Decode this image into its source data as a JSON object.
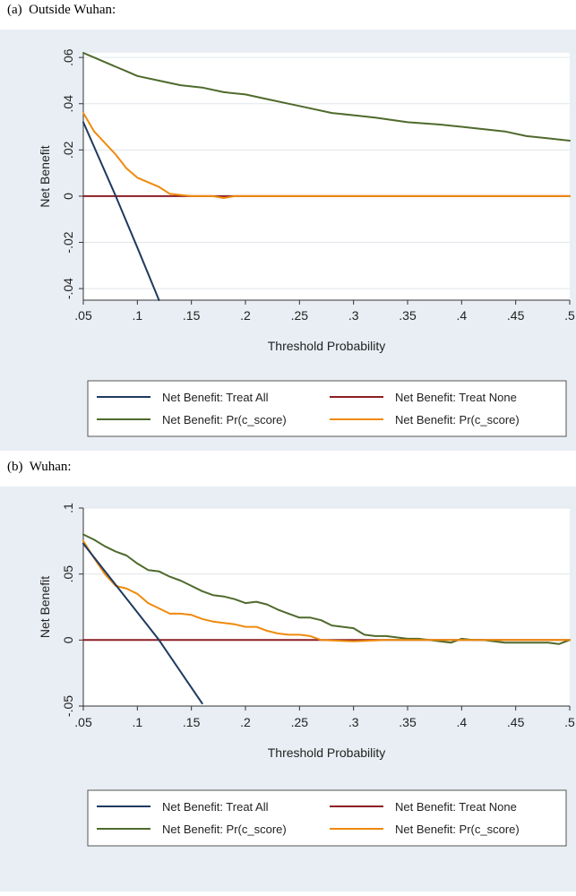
{
  "panels": [
    {
      "title": "(a)  Outside Wuhan:"
    },
    {
      "title": "(b)  Wuhan:"
    }
  ],
  "colors": {
    "background": "#e8eef4",
    "plot": "#ffffff",
    "grid": "#e1e6ec",
    "treat_all": "#1f3a5f",
    "treat_none": "#8b1e24",
    "model_green": "#4f6a2c",
    "model_orange": "#ef8a0c"
  },
  "chart_data": [
    {
      "type": "line",
      "xlabel": "Threshold Probability",
      "ylabel": "Net Benefit",
      "xlim": [
        0.05,
        0.5
      ],
      "ylim": [
        -0.045,
        0.062
      ],
      "xticks": [
        0.05,
        0.1,
        0.15,
        0.2,
        0.25,
        0.3,
        0.35,
        0.4,
        0.45,
        0.5
      ],
      "xtick_labels": [
        ".05",
        ".1",
        ".15",
        ".2",
        ".25",
        ".3",
        ".35",
        ".4",
        ".45",
        ".5"
      ],
      "yticks": [
        -0.04,
        -0.02,
        0,
        0.02,
        0.04,
        0.06
      ],
      "ytick_labels": [
        "-.04",
        "-.02",
        "0",
        ".02",
        ".04",
        ".06"
      ],
      "grid": true,
      "legend_position": "bottom",
      "series": [
        {
          "name": "Net Benefit: Treat All",
          "color": "treat_all",
          "x": [
            0.05,
            0.08,
            0.1,
            0.12
          ],
          "y": [
            0.032,
            0.0,
            -0.0222,
            -0.045
          ]
        },
        {
          "name": "Net Benefit: Treat None",
          "color": "treat_none",
          "x": [
            0.05,
            0.5
          ],
          "y": [
            0,
            0
          ]
        },
        {
          "name": "Net Benefit: Pr(c_score)",
          "color": "model_green",
          "x": [
            0.05,
            0.06,
            0.07,
            0.08,
            0.09,
            0.1,
            0.12,
            0.14,
            0.16,
            0.18,
            0.2,
            0.22,
            0.25,
            0.28,
            0.3,
            0.32,
            0.35,
            0.38,
            0.4,
            0.42,
            0.44,
            0.46,
            0.48,
            0.5
          ],
          "y": [
            0.062,
            0.06,
            0.058,
            0.056,
            0.054,
            0.052,
            0.05,
            0.048,
            0.047,
            0.045,
            0.044,
            0.042,
            0.039,
            0.036,
            0.035,
            0.034,
            0.032,
            0.031,
            0.03,
            0.029,
            0.028,
            0.026,
            0.025,
            0.024
          ]
        },
        {
          "name": "Net Benefit: Pr(c_score)",
          "color": "model_orange",
          "x": [
            0.05,
            0.06,
            0.07,
            0.08,
            0.09,
            0.1,
            0.11,
            0.12,
            0.13,
            0.14,
            0.15,
            0.17,
            0.18,
            0.19,
            0.2,
            0.25,
            0.3,
            0.35,
            0.4,
            0.45,
            0.5
          ],
          "y": [
            0.036,
            0.028,
            0.023,
            0.018,
            0.012,
            0.008,
            0.006,
            0.004,
            0.001,
            0.0005,
            0.0,
            0.0,
            -0.0008,
            0.0,
            0.0,
            0.0,
            0.0,
            0.0,
            0.0,
            0.0,
            0.0
          ]
        }
      ]
    },
    {
      "type": "line",
      "xlabel": "Threshold Probability",
      "ylabel": "Net Benefit",
      "xlim": [
        0.05,
        0.5
      ],
      "ylim": [
        -0.05,
        0.1
      ],
      "xticks": [
        0.05,
        0.1,
        0.15,
        0.2,
        0.25,
        0.3,
        0.35,
        0.4,
        0.45,
        0.5
      ],
      "xtick_labels": [
        ".05",
        ".1",
        ".15",
        ".2",
        ".25",
        ".3",
        ".35",
        ".4",
        ".45",
        ".5"
      ],
      "yticks": [
        -0.05,
        0,
        0.05,
        0.1
      ],
      "ytick_labels": [
        "-.05",
        "0",
        ".05",
        ".1"
      ],
      "grid": true,
      "legend_position": "bottom",
      "series": [
        {
          "name": "Net Benefit: Treat All",
          "color": "treat_all",
          "x": [
            0.05,
            0.1,
            0.12,
            0.16
          ],
          "y": [
            0.073,
            0.021,
            0.0,
            -0.048
          ]
        },
        {
          "name": "Net Benefit: Treat None",
          "color": "treat_none",
          "x": [
            0.05,
            0.5
          ],
          "y": [
            0,
            0
          ]
        },
        {
          "name": "Net Benefit: Pr(c_score)",
          "color": "model_green",
          "x": [
            0.05,
            0.06,
            0.07,
            0.08,
            0.09,
            0.1,
            0.11,
            0.12,
            0.13,
            0.14,
            0.15,
            0.16,
            0.17,
            0.18,
            0.19,
            0.2,
            0.21,
            0.22,
            0.23,
            0.24,
            0.25,
            0.26,
            0.27,
            0.28,
            0.29,
            0.3,
            0.31,
            0.32,
            0.33,
            0.34,
            0.35,
            0.36,
            0.37,
            0.38,
            0.39,
            0.4,
            0.41,
            0.42,
            0.43,
            0.44,
            0.45,
            0.46,
            0.47,
            0.48,
            0.49,
            0.5
          ],
          "y": [
            0.08,
            0.076,
            0.071,
            0.067,
            0.064,
            0.058,
            0.053,
            0.052,
            0.048,
            0.045,
            0.041,
            0.037,
            0.034,
            0.033,
            0.031,
            0.028,
            0.029,
            0.027,
            0.023,
            0.02,
            0.017,
            0.017,
            0.015,
            0.011,
            0.01,
            0.009,
            0.004,
            0.003,
            0.003,
            0.002,
            0.001,
            0.001,
            0.0,
            -0.001,
            -0.002,
            0.001,
            0.0,
            0.0,
            -0.001,
            -0.002,
            -0.002,
            -0.002,
            -0.002,
            -0.002,
            -0.003,
            0.0
          ]
        },
        {
          "name": "Net Benefit: Pr(c_score)",
          "color": "model_orange",
          "x": [
            0.05,
            0.06,
            0.07,
            0.08,
            0.09,
            0.1,
            0.11,
            0.12,
            0.13,
            0.14,
            0.15,
            0.16,
            0.17,
            0.18,
            0.19,
            0.2,
            0.21,
            0.22,
            0.23,
            0.24,
            0.25,
            0.26,
            0.27,
            0.3,
            0.33,
            0.35,
            0.4,
            0.45,
            0.5
          ],
          "y": [
            0.075,
            0.062,
            0.05,
            0.041,
            0.039,
            0.035,
            0.028,
            0.024,
            0.02,
            0.02,
            0.019,
            0.016,
            0.014,
            0.013,
            0.012,
            0.01,
            0.01,
            0.007,
            0.005,
            0.004,
            0.004,
            0.003,
            0.0,
            -0.001,
            0.0,
            0.0,
            0.0,
            0.0,
            0.0
          ]
        }
      ]
    }
  ]
}
